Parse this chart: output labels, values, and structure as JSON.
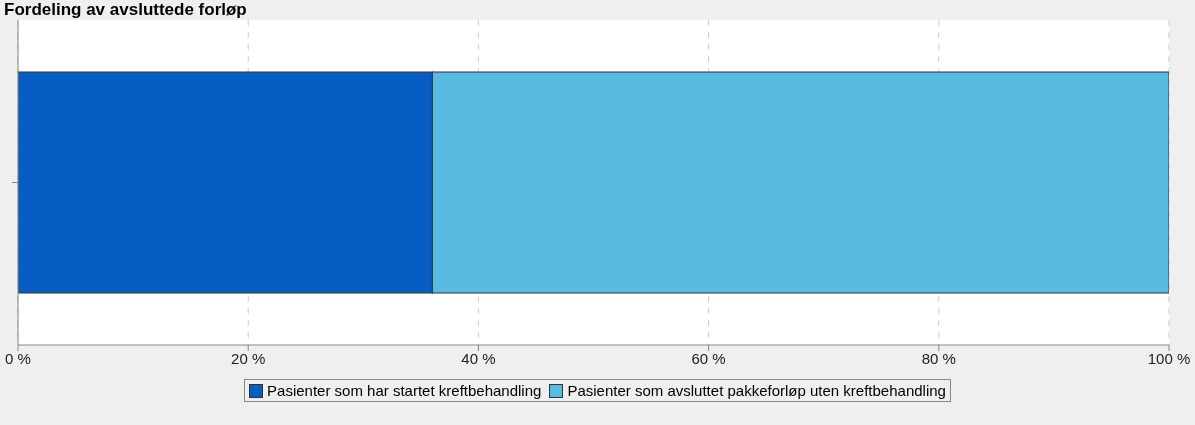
{
  "chart_data": {
    "type": "bar",
    "title": "Fordeling av avsluttede forløp",
    "orientation": "horizontal",
    "stacked": true,
    "categories": [
      null
    ],
    "series": [
      {
        "name": "Pasienter som har startet kreftbehandling",
        "color": "#075ec2",
        "values": [
          36
        ]
      },
      {
        "name": "Pasienter som avsluttet pakkeforløp uten kreftbehandling",
        "color": "#58bce2",
        "values": [
          64
        ]
      }
    ],
    "xlim": [
      0,
      100
    ],
    "xticks": [
      {
        "value": 0,
        "label": "0 %"
      },
      {
        "value": 20,
        "label": "20 %"
      },
      {
        "value": 40,
        "label": "40 %"
      },
      {
        "value": 60,
        "label": "60 %"
      },
      {
        "value": 80,
        "label": "80 %"
      },
      {
        "value": 100,
        "label": "100 %"
      }
    ],
    "grid": "x",
    "legend": "bottom"
  }
}
